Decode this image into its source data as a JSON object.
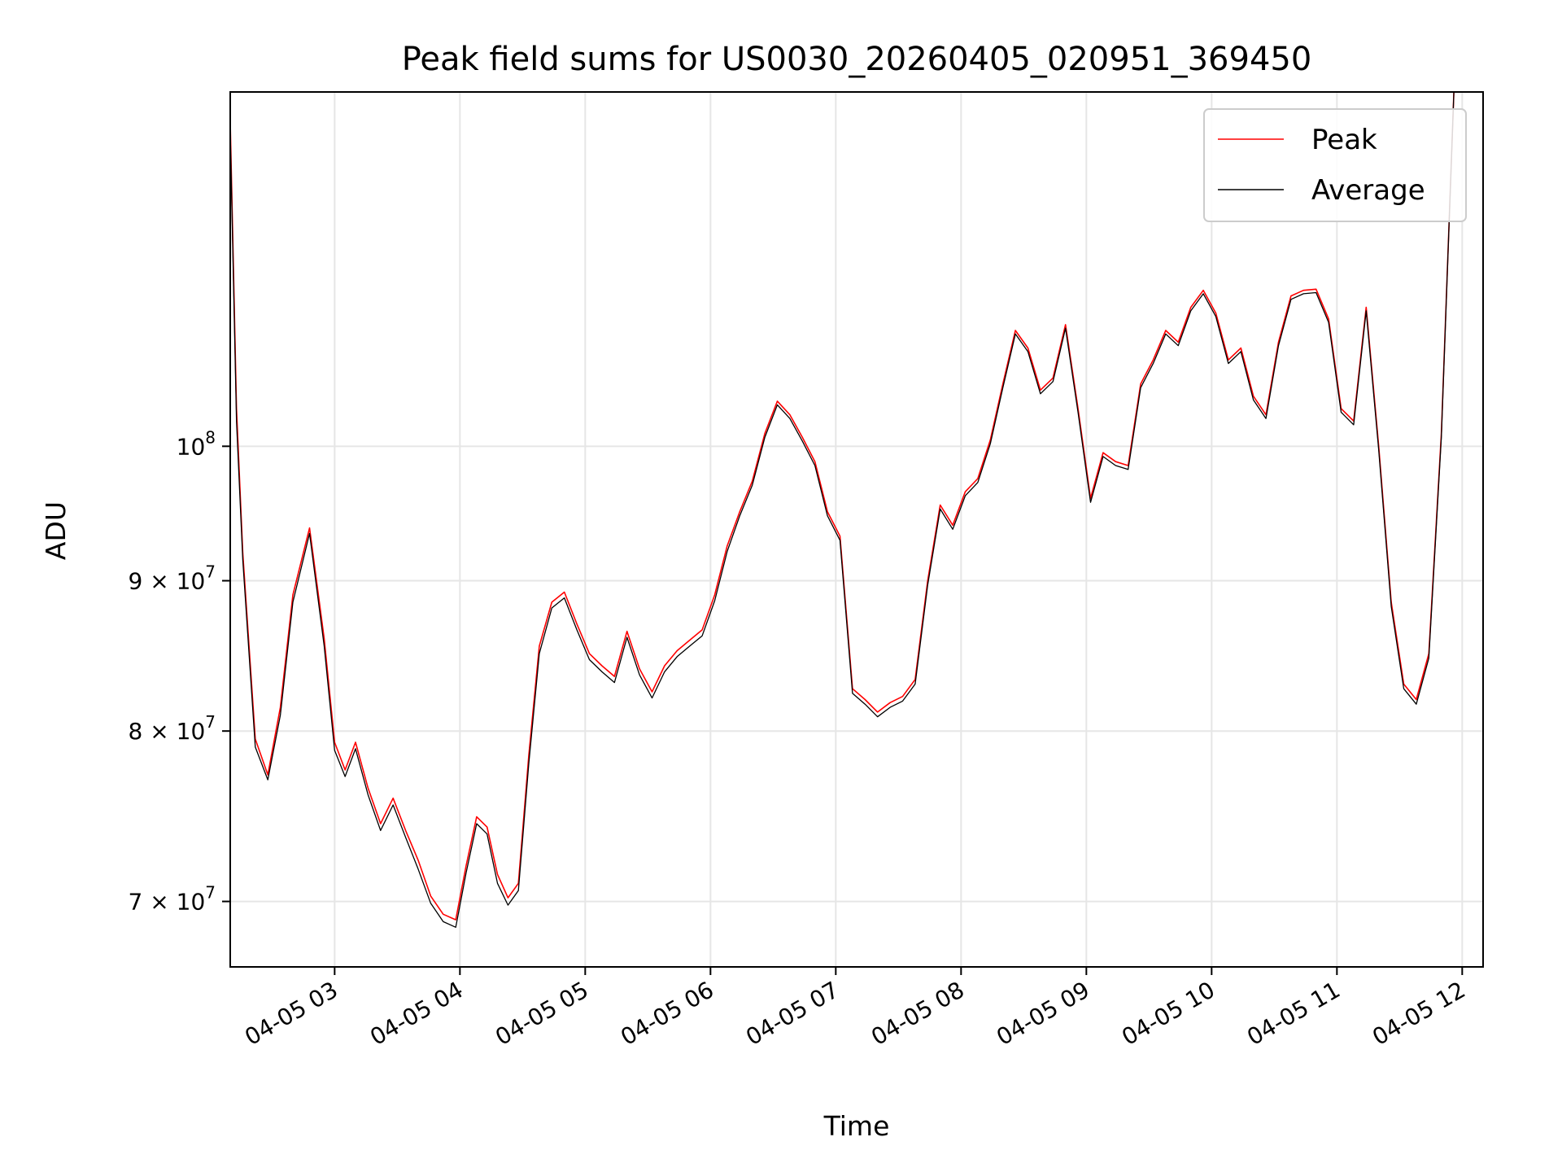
{
  "chart_data": {
    "type": "line",
    "title": "Peak field sums for US0030_20260405_020951_369450",
    "xlabel": "Time",
    "ylabel": "ADU",
    "y_scale": "log",
    "ylim": [
      66500000,
      132000000
    ],
    "x_range": [
      "04-05 02:10",
      "04-05 12:10"
    ],
    "x_ticks": [
      "04-05 03",
      "04-05 04",
      "04-05 05",
      "04-05 06",
      "04-05 07",
      "04-05 08",
      "04-05 09",
      "04-05 10",
      "04-05 11",
      "04-05 12"
    ],
    "y_ticks": [
      {
        "label_main": "7 × 10",
        "label_exp": "7",
        "value": 70000000
      },
      {
        "label_main": "8 × 10",
        "label_exp": "7",
        "value": 80000000
      },
      {
        "label_main": "9 × 10",
        "label_exp": "7",
        "value": 90000000
      },
      {
        "label_main": "10",
        "label_exp": "8",
        "value": 100000000
      }
    ],
    "grid": true,
    "legend_position": "top-right",
    "series": [
      {
        "name": "Peak",
        "color": "#ff0000",
        "x": [
          "04-05 02:10",
          "04-05 02:13",
          "04-05 02:16",
          "04-05 02:22",
          "04-05 02:28",
          "04-05 02:34",
          "04-05 02:40",
          "04-05 02:48",
          "04-05 02:55",
          "04-05 03:00",
          "04-05 03:05",
          "04-05 03:10",
          "04-05 03:16",
          "04-05 03:22",
          "04-05 03:28",
          "04-05 03:34",
          "04-05 03:40",
          "04-05 03:46",
          "04-05 03:52",
          "04-05 03:58",
          "04-05 04:03",
          "04-05 04:08",
          "04-05 04:13",
          "04-05 04:18",
          "04-05 04:23",
          "04-05 04:28",
          "04-05 04:33",
          "04-05 04:38",
          "04-05 04:44",
          "04-05 04:50",
          "04-05 04:56",
          "04-05 05:02",
          "04-05 05:08",
          "04-05 05:14",
          "04-05 05:20",
          "04-05 05:26",
          "04-05 05:32",
          "04-05 05:38",
          "04-05 05:44",
          "04-05 05:50",
          "04-05 05:56",
          "04-05 06:02",
          "04-05 06:08",
          "04-05 06:14",
          "04-05 06:20",
          "04-05 06:26",
          "04-05 06:32",
          "04-05 06:38",
          "04-05 06:44",
          "04-05 06:50",
          "04-05 06:56",
          "04-05 07:02",
          "04-05 07:08",
          "04-05 07:14",
          "04-05 07:20",
          "04-05 07:26",
          "04-05 07:32",
          "04-05 07:38",
          "04-05 07:44",
          "04-05 07:50",
          "04-05 07:56",
          "04-05 08:02",
          "04-05 08:08",
          "04-05 08:14",
          "04-05 08:20",
          "04-05 08:26",
          "04-05 08:32",
          "04-05 08:38",
          "04-05 08:44",
          "04-05 08:50",
          "04-05 08:56",
          "04-05 09:02",
          "04-05 09:08",
          "04-05 09:14",
          "04-05 09:20",
          "04-05 09:26",
          "04-05 09:32",
          "04-05 09:38",
          "04-05 09:44",
          "04-05 09:50",
          "04-05 09:56",
          "04-05 10:02",
          "04-05 10:08",
          "04-05 10:14",
          "04-05 10:20",
          "04-05 10:26",
          "04-05 10:32",
          "04-05 10:38",
          "04-05 10:44",
          "04-05 10:50",
          "04-05 10:56",
          "04-05 11:02",
          "04-05 11:08",
          "04-05 11:14",
          "04-05 11:20",
          "04-05 11:26",
          "04-05 11:32",
          "04-05 11:38",
          "04-05 11:44",
          "04-05 11:50",
          "04-05 11:56",
          "04-05 12:02",
          "04-05 12:08"
        ],
        "values": [
          129000000,
          103000000,
          92000000,
          79500000,
          77300000,
          81500000,
          89000000,
          93800000,
          86000000,
          79300000,
          77600000,
          79300000,
          76500000,
          74400000,
          75900000,
          74000000,
          72300000,
          70300000,
          69300000,
          69000000,
          72000000,
          74800000,
          74200000,
          71500000,
          70200000,
          71000000,
          78500000,
          85500000,
          88500000,
          89200000,
          87000000,
          85000000,
          84200000,
          83500000,
          86500000,
          84000000,
          82500000,
          84200000,
          85200000,
          85900000,
          86600000,
          89000000,
          92500000,
          95000000,
          97300000,
          101000000,
          103600000,
          102500000,
          100700000,
          98800000,
          95000000,
          93200000,
          82700000,
          82000000,
          81200000,
          81800000,
          82200000,
          83300000,
          90000000,
          95500000,
          94000000,
          96500000,
          97500000,
          100500000,
          105000000,
          109500000,
          108000000,
          104500000,
          105500000,
          110000000,
          103000000,
          96000000,
          99500000,
          98800000,
          98500000,
          105000000,
          107000000,
          109500000,
          108500000,
          111500000,
          113000000,
          111000000,
          107000000,
          108000000,
          104000000,
          102500000,
          108500000,
          112500000,
          113000000,
          113100000,
          110500000,
          103000000,
          102000000,
          111500000,
          100000000,
          88500000,
          83000000,
          82000000,
          85000000,
          101000000,
          132000000,
          132000000,
          132000000
        ]
      },
      {
        "name": "Average",
        "color": "#000000",
        "x": [
          "04-05 02:10",
          "04-05 02:13",
          "04-05 02:16",
          "04-05 02:22",
          "04-05 02:28",
          "04-05 02:34",
          "04-05 02:40",
          "04-05 02:48",
          "04-05 02:55",
          "04-05 03:00",
          "04-05 03:05",
          "04-05 03:10",
          "04-05 03:16",
          "04-05 03:22",
          "04-05 03:28",
          "04-05 03:34",
          "04-05 03:40",
          "04-05 03:46",
          "04-05 03:52",
          "04-05 03:58",
          "04-05 04:03",
          "04-05 04:08",
          "04-05 04:13",
          "04-05 04:18",
          "04-05 04:23",
          "04-05 04:28",
          "04-05 04:33",
          "04-05 04:38",
          "04-05 04:44",
          "04-05 04:50",
          "04-05 04:56",
          "04-05 05:02",
          "04-05 05:08",
          "04-05 05:14",
          "04-05 05:20",
          "04-05 05:26",
          "04-05 05:32",
          "04-05 05:38",
          "04-05 05:44",
          "04-05 05:50",
          "04-05 05:56",
          "04-05 06:02",
          "04-05 06:08",
          "04-05 06:14",
          "04-05 06:20",
          "04-05 06:26",
          "04-05 06:32",
          "04-05 06:38",
          "04-05 06:44",
          "04-05 06:50",
          "04-05 06:56",
          "04-05 07:02",
          "04-05 07:08",
          "04-05 07:14",
          "04-05 07:20",
          "04-05 07:26",
          "04-05 07:32",
          "04-05 07:38",
          "04-05 07:44",
          "04-05 07:50",
          "04-05 07:56",
          "04-05 08:02",
          "04-05 08:08",
          "04-05 08:14",
          "04-05 08:20",
          "04-05 08:26",
          "04-05 08:32",
          "04-05 08:38",
          "04-05 08:44",
          "04-05 08:50",
          "04-05 08:56",
          "04-05 09:02",
          "04-05 09:08",
          "04-05 09:14",
          "04-05 09:20",
          "04-05 09:26",
          "04-05 09:32",
          "04-05 09:38",
          "04-05 09:44",
          "04-05 09:50",
          "04-05 09:56",
          "04-05 10:02",
          "04-05 10:08",
          "04-05 10:14",
          "04-05 10:20",
          "04-05 10:26",
          "04-05 10:32",
          "04-05 10:38",
          "04-05 10:44",
          "04-05 10:50",
          "04-05 10:56",
          "04-05 11:02",
          "04-05 11:08",
          "04-05 11:14",
          "04-05 11:20",
          "04-05 11:26",
          "04-05 11:32",
          "04-05 11:38",
          "04-05 11:44",
          "04-05 11:50",
          "04-05 11:56",
          "04-05 12:02",
          "04-05 12:08"
        ],
        "values": [
          128000000,
          102000000,
          91500000,
          79000000,
          77000000,
          81000000,
          88500000,
          93400000,
          85500000,
          78800000,
          77200000,
          78900000,
          76100000,
          74000000,
          75500000,
          73600000,
          71800000,
          69900000,
          68900000,
          68600000,
          71600000,
          74400000,
          73800000,
          71000000,
          69800000,
          70600000,
          78000000,
          85000000,
          88100000,
          88800000,
          86600000,
          84600000,
          83800000,
          83100000,
          86100000,
          83600000,
          82100000,
          83800000,
          84800000,
          85500000,
          86200000,
          88600000,
          92100000,
          94700000,
          97000000,
          100700000,
          103300000,
          102200000,
          100400000,
          98500000,
          94700000,
          92900000,
          82400000,
          81700000,
          80900000,
          81500000,
          81900000,
          83000000,
          89700000,
          95200000,
          93700000,
          96200000,
          97200000,
          100200000,
          104700000,
          109200000,
          107700000,
          104200000,
          105200000,
          109700000,
          102700000,
          95700000,
          99200000,
          98500000,
          98200000,
          104700000,
          106700000,
          109200000,
          108200000,
          111200000,
          112700000,
          110700000,
          106700000,
          107700000,
          103700000,
          102200000,
          108200000,
          112200000,
          112700000,
          112800000,
          110200000,
          102700000,
          101700000,
          111200000,
          99700000,
          88200000,
          82700000,
          81700000,
          84700000,
          100700000,
          132000000,
          132000000,
          132000000
        ]
      }
    ]
  }
}
